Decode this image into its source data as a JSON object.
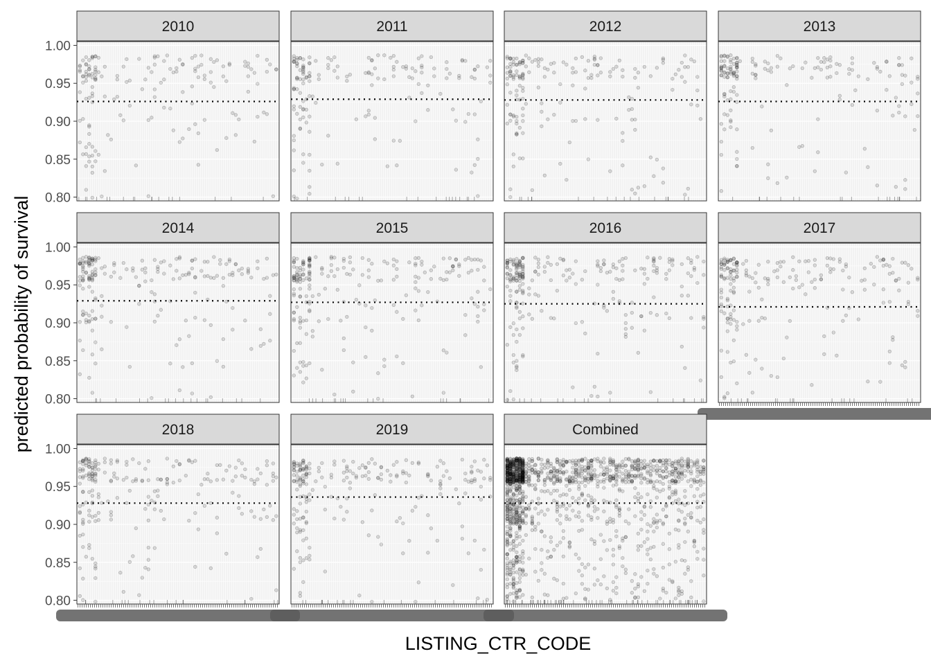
{
  "chart_data": {
    "type": "scatter",
    "facet_layout": "wrap 4 columns, 3 rows",
    "xlabel": "LISTING_CTR_CODE",
    "ylabel": "predicted probability of survival",
    "ylim": [
      0.795,
      1.005
    ],
    "yticks": [
      0.8,
      0.85,
      0.9,
      0.95,
      1.0
    ],
    "ytick_labels": [
      "0.80",
      "0.85",
      "0.90",
      "0.95",
      "1.00"
    ],
    "x_axis": "categorical country codes; tick labels overplotted and illegible",
    "reference_line": "dotted horizontal line at the mean predicted probability per panel",
    "grid": true,
    "point_color": "#000000",
    "point_alpha": 0.15,
    "panel_background": "#f2f2f2",
    "strip_background": "#d9d9d9",
    "facets": [
      {
        "label": "2010",
        "mean": 0.926,
        "n_points": 170,
        "seed": 11
      },
      {
        "label": "2011",
        "mean": 0.929,
        "n_points": 170,
        "seed": 23
      },
      {
        "label": "2012",
        "mean": 0.928,
        "n_points": 190,
        "seed": 37
      },
      {
        "label": "2013",
        "mean": 0.926,
        "n_points": 180,
        "seed": 41
      },
      {
        "label": "2014",
        "mean": 0.929,
        "n_points": 210,
        "seed": 53
      },
      {
        "label": "2015",
        "mean": 0.927,
        "n_points": 230,
        "seed": 67
      },
      {
        "label": "2016",
        "mean": 0.925,
        "n_points": 250,
        "seed": 71
      },
      {
        "label": "2017",
        "mean": 0.921,
        "n_points": 220,
        "seed": 83
      },
      {
        "label": "2018",
        "mean": 0.928,
        "n_points": 230,
        "seed": 97
      },
      {
        "label": "2019",
        "mean": 0.936,
        "n_points": 230,
        "seed": 101
      },
      {
        "label": "Combined",
        "mean": 0.928,
        "n_points": 1500,
        "seed": 113
      }
    ]
  }
}
